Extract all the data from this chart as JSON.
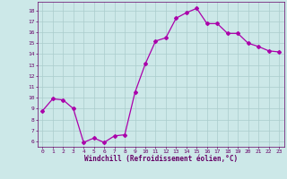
{
  "hours": [
    0,
    1,
    2,
    3,
    4,
    5,
    6,
    7,
    8,
    9,
    10,
    11,
    12,
    13,
    14,
    15,
    16,
    17,
    18,
    19,
    20,
    21,
    22,
    23
  ],
  "values": [
    8.8,
    9.9,
    9.8,
    9.0,
    5.9,
    6.3,
    5.9,
    6.5,
    6.6,
    10.5,
    13.1,
    15.2,
    15.5,
    17.3,
    17.8,
    18.2,
    16.8,
    16.8,
    15.9,
    15.9,
    15.0,
    14.7,
    14.3,
    14.2
  ],
  "line_color": "#aa00aa",
  "marker": "D",
  "marker_size": 2,
  "bg_color": "#cce8e8",
  "grid_color": "#aacccc",
  "xlabel": "Windchill (Refroidissement éolien,°C)",
  "xlabel_color": "#660066",
  "tick_color": "#660066",
  "ylim": [
    5.5,
    18.8
  ],
  "yticks": [
    6,
    7,
    8,
    9,
    10,
    11,
    12,
    13,
    14,
    15,
    16,
    17,
    18
  ],
  "xlim": [
    -0.5,
    23.5
  ],
  "xticks": [
    0,
    1,
    2,
    3,
    4,
    5,
    6,
    7,
    8,
    9,
    10,
    11,
    12,
    13,
    14,
    15,
    16,
    17,
    18,
    19,
    20,
    21,
    22,
    23
  ]
}
